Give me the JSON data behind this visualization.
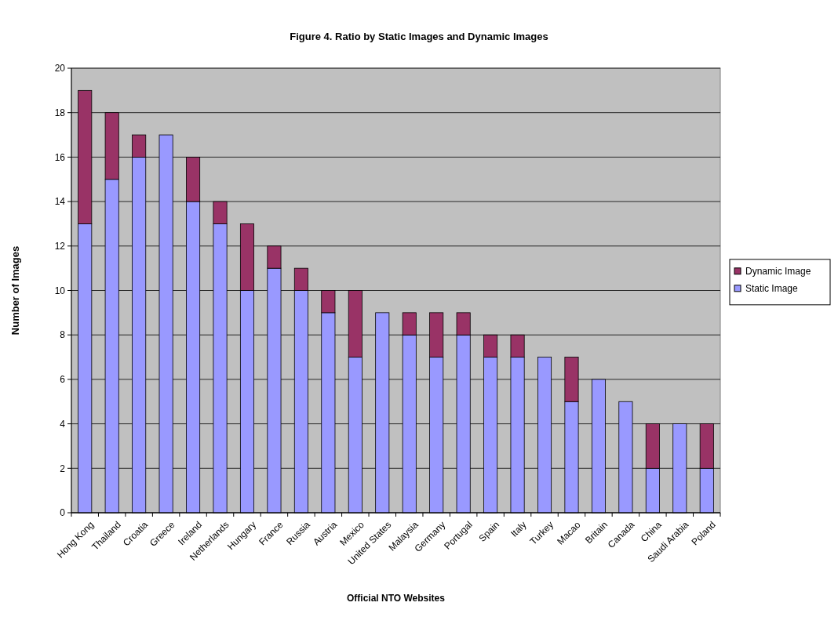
{
  "chart_data": {
    "type": "bar",
    "title": "Figure 4. Ratio by Static Images and Dynamic Images",
    "xlabel": "Official NTO Websites",
    "ylabel": "Number of Images",
    "categories": [
      "Hong Kong",
      "Thailand",
      "Croatia",
      "Greece",
      "Ireland",
      "Netherlands",
      "Hungary",
      "France",
      "Russia",
      "Austria",
      "Mexico",
      "United States",
      "Malaysia",
      "Germany",
      "Portugal",
      "Spain",
      "Italy",
      "Turkey",
      "Macao",
      "Britain",
      "Canada",
      "China",
      "Saudi Arabia",
      "Poland"
    ],
    "series": [
      {
        "name": "Static Image",
        "color": "#9999ff",
        "values": [
          13,
          15,
          16,
          17,
          14,
          13,
          10,
          11,
          10,
          9,
          7,
          9,
          8,
          7,
          8,
          7,
          7,
          7,
          5,
          6,
          5,
          2,
          4,
          2
        ]
      },
      {
        "name": "Dynamic Image",
        "color": "#993366",
        "values": [
          6,
          3,
          1,
          0,
          2,
          1,
          3,
          1,
          1,
          1,
          3,
          0,
          1,
          2,
          1,
          1,
          1,
          0,
          2,
          0,
          0,
          2,
          0,
          2
        ]
      }
    ],
    "stacked": true,
    "ylim": [
      0,
      20
    ],
    "yticks": [
      0,
      2,
      4,
      6,
      8,
      10,
      12,
      14,
      16,
      18,
      20
    ],
    "grid": "y",
    "legend": "right"
  }
}
